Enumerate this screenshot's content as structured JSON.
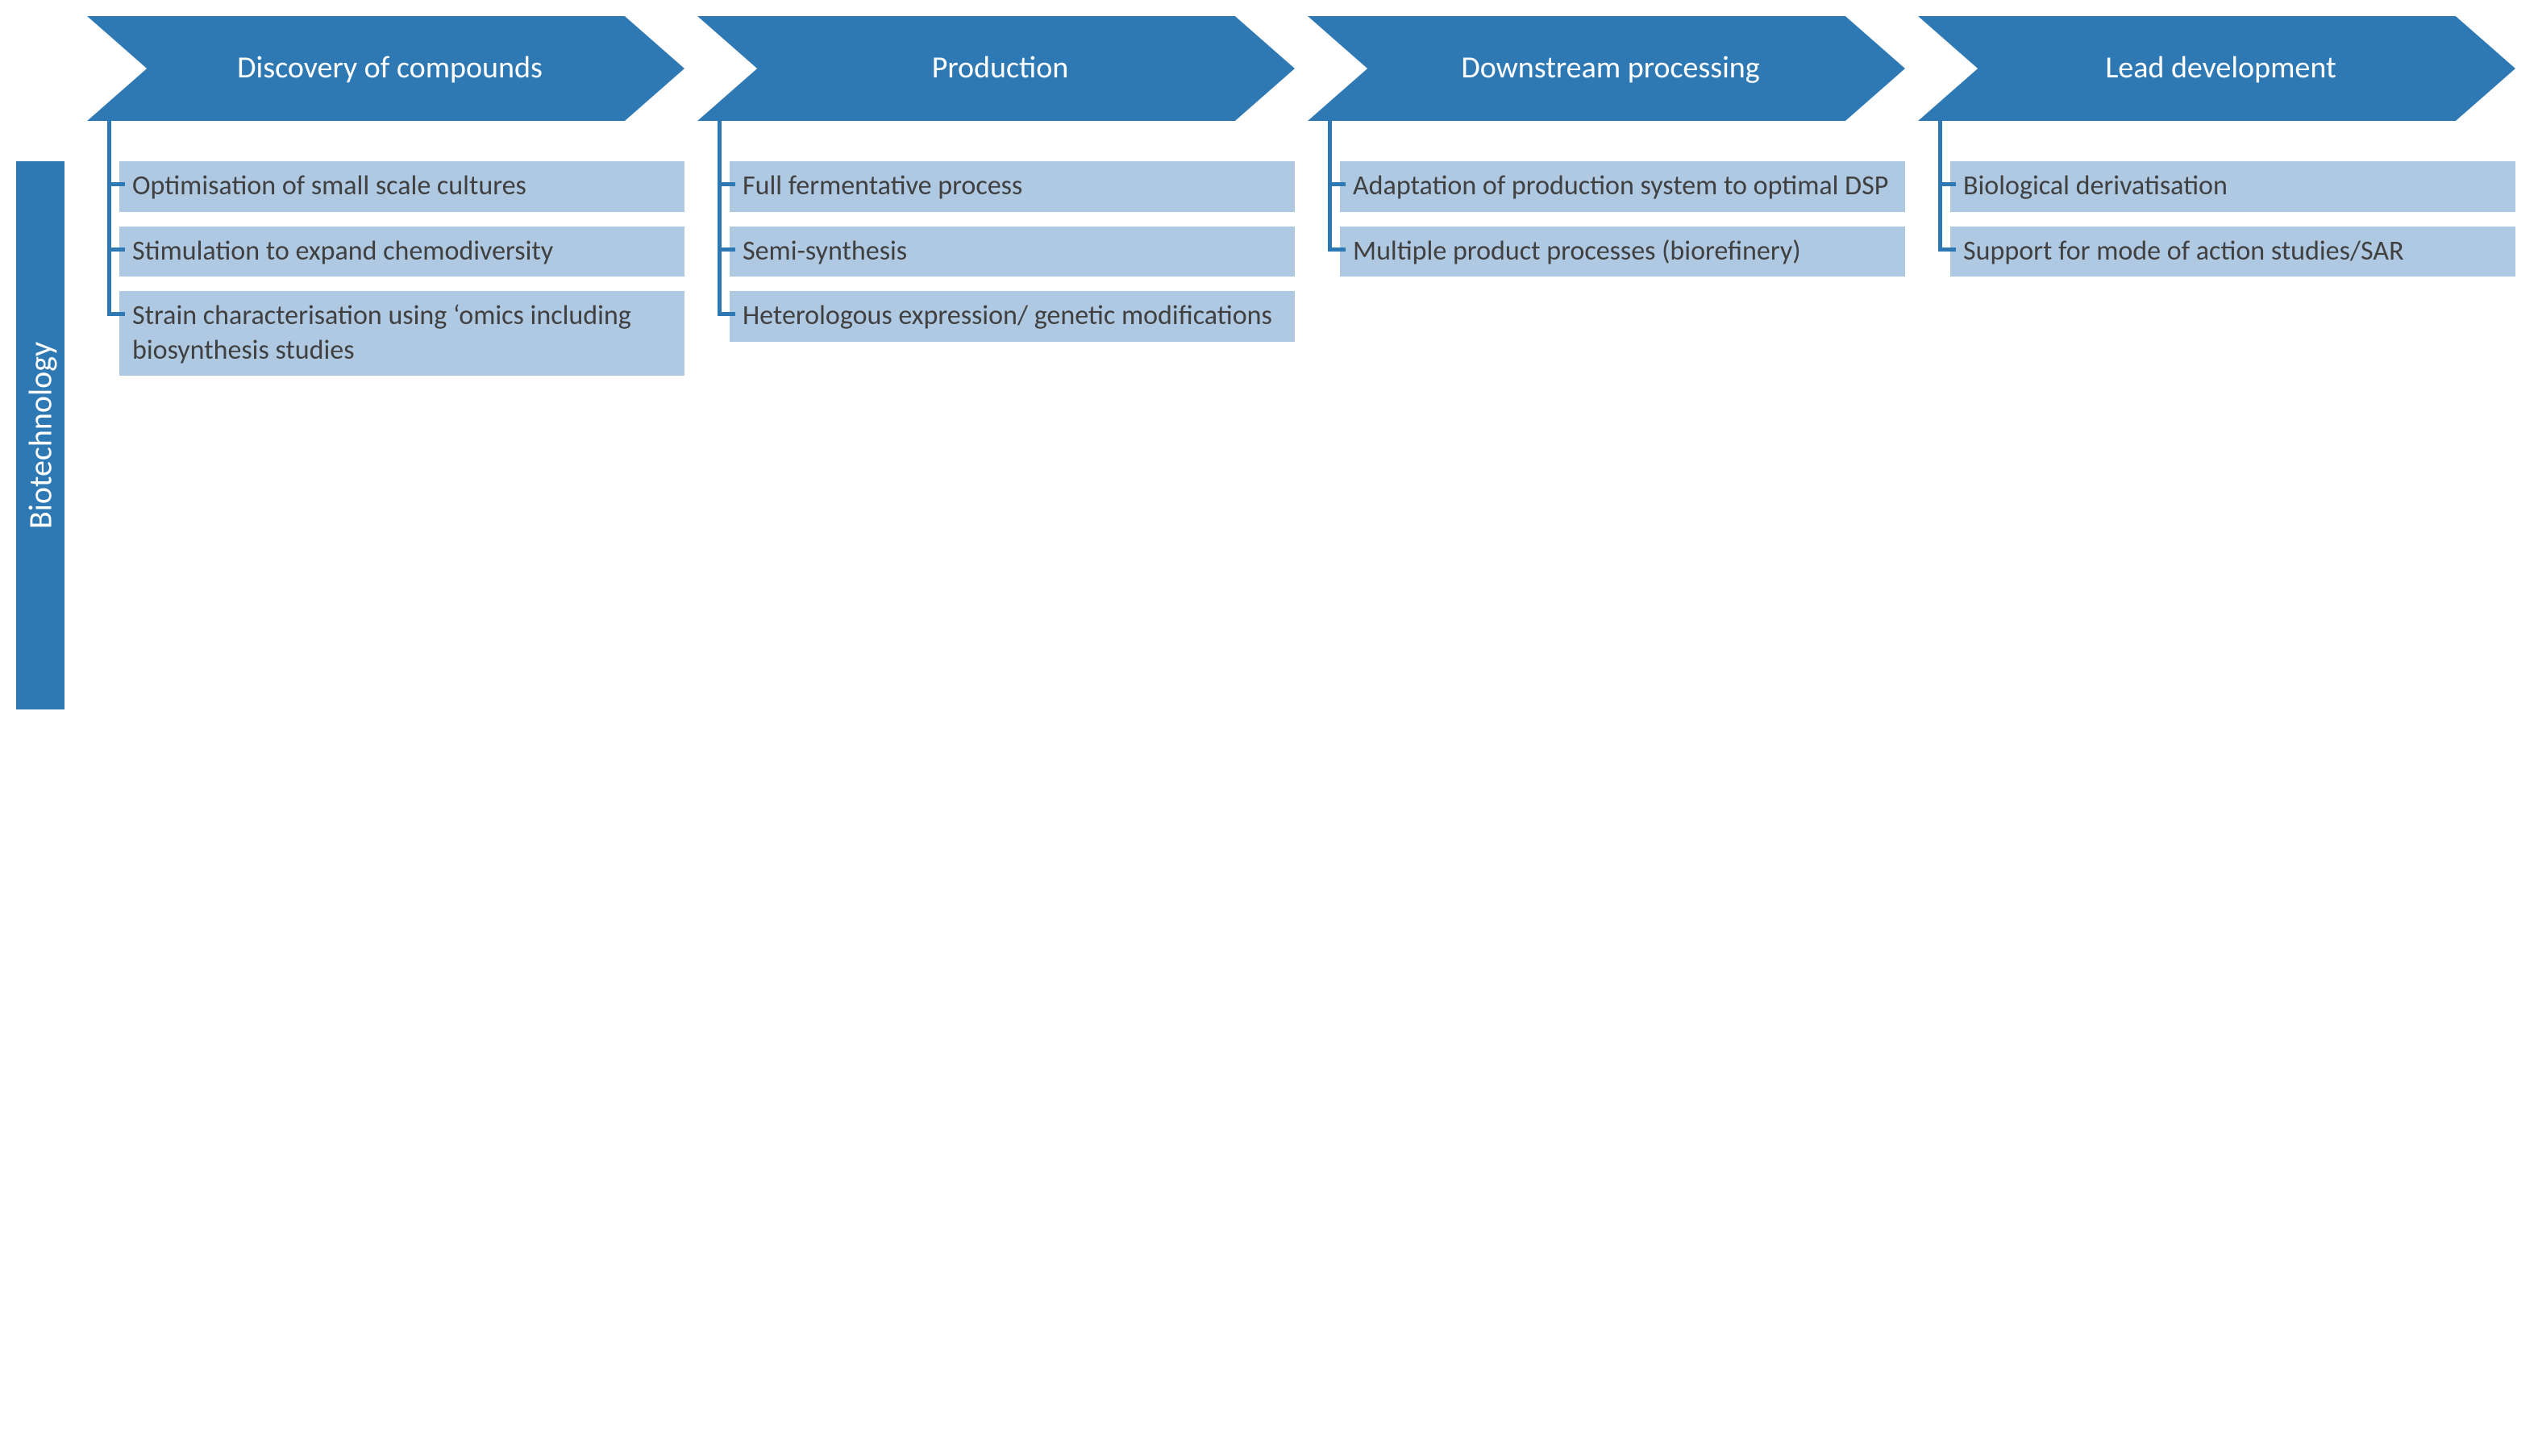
{
  "colors": {
    "header_fill": "#2e79b4",
    "item_fill": "#afc9e2",
    "side_fill": "#2e79b4",
    "line": "#2e79b4",
    "header_text": "#ffffff",
    "item_text": "#404040",
    "background": "#ffffff"
  },
  "typography": {
    "header_fontsize": 38,
    "item_fontsize": 34,
    "side_fontsize": 40,
    "font_family": "Calibri, 'Segoe UI', Arial, sans-serif"
  },
  "layout": {
    "chevron_height": 130,
    "chevron_notch_depth": 40,
    "side_label_width": 60,
    "side_label_height": 680,
    "connector_line_width": 5,
    "item_gap": 18
  },
  "side_label": "Biotechnology",
  "stages": [
    {
      "title": "Discovery of compounds",
      "items": [
        "Optimisation of small scale cultures",
        "Stimulation to expand chemodiversity",
        "Strain characterisation using ‘omics including biosynthesis studies"
      ]
    },
    {
      "title": "Production",
      "items": [
        "Full fermentative process",
        "Semi-synthesis",
        "Heterologous expression/ genetic modifications"
      ]
    },
    {
      "title": "Downstream processing",
      "items": [
        "Adaptation of production system to optimal DSP",
        "Multiple product processes (biorefinery)"
      ]
    },
    {
      "title": "Lead development",
      "items": [
        "Biological derivatisation",
        "Support for mode of action studies/SAR"
      ]
    }
  ]
}
